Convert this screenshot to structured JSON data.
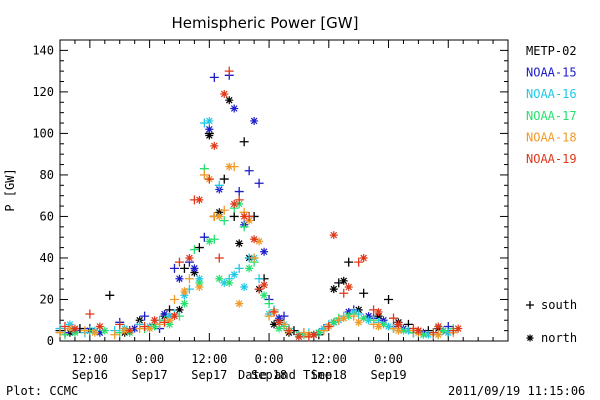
{
  "chart_data": {
    "type": "scatter",
    "title": "Hemispheric Power [GW]",
    "ylabel": "P [GW]",
    "xlabel": "Date and Time",
    "ylim": [
      0,
      145
    ],
    "y_ticks": [
      0,
      20,
      40,
      60,
      80,
      100,
      120,
      140
    ],
    "xlim_hours": [
      0,
      90
    ],
    "x_ticks": [
      {
        "hour": 6,
        "time": "12:00",
        "date": "Sep16"
      },
      {
        "hour": 18,
        "time": "0:00",
        "date": "Sep17"
      },
      {
        "hour": 30,
        "time": "12:00",
        "date": "Sep17"
      },
      {
        "hour": 42,
        "time": "0:00",
        "date": "Sep18"
      },
      {
        "hour": 54,
        "time": "12:00",
        "date": "Sep18"
      },
      {
        "hour": 66,
        "time": "0:00",
        "date": "Sep19"
      }
    ],
    "grid": false,
    "legend_position": "right",
    "marker_legend": [
      {
        "symbol": "+",
        "label": "south",
        "shape": "plus"
      },
      {
        "symbol": "*",
        "label": "north",
        "shape": "star"
      }
    ],
    "series": [
      {
        "name": "METP-02",
        "color": "#000000",
        "south": [
          [
            0,
            5
          ],
          [
            4,
            6
          ],
          [
            10,
            22
          ],
          [
            14,
            5
          ],
          [
            19,
            8
          ],
          [
            22,
            15
          ],
          [
            25,
            35
          ],
          [
            28,
            45
          ],
          [
            30,
            100
          ],
          [
            31,
            60
          ],
          [
            33,
            78
          ],
          [
            35,
            60
          ],
          [
            37,
            96
          ],
          [
            39,
            60
          ],
          [
            41,
            30
          ],
          [
            44,
            10
          ],
          [
            47,
            5
          ],
          [
            52,
            3
          ],
          [
            56,
            28
          ],
          [
            58,
            38
          ],
          [
            61,
            23
          ],
          [
            66,
            20
          ],
          [
            70,
            8
          ],
          [
            74,
            5
          ],
          [
            78,
            4
          ]
        ],
        "north": [
          [
            2,
            4
          ],
          [
            6,
            5
          ],
          [
            13,
            4
          ],
          [
            16,
            10
          ],
          [
            21,
            12
          ],
          [
            24,
            15
          ],
          [
            27,
            33
          ],
          [
            30,
            99
          ],
          [
            32,
            62
          ],
          [
            34,
            116
          ],
          [
            36,
            47
          ],
          [
            38,
            40
          ],
          [
            40,
            25
          ],
          [
            43,
            8
          ],
          [
            46,
            4
          ],
          [
            51,
            3
          ],
          [
            55,
            25
          ],
          [
            57,
            29
          ],
          [
            60,
            15
          ],
          [
            64,
            12
          ],
          [
            68,
            9
          ],
          [
            72,
            5
          ],
          [
            76,
            6
          ]
        ]
      },
      {
        "name": "NOAA-15",
        "color": "#1c1cc8",
        "south": [
          [
            1,
            4
          ],
          [
            6,
            6
          ],
          [
            12,
            9
          ],
          [
            17,
            12
          ],
          [
            20,
            6
          ],
          [
            23,
            35
          ],
          [
            26,
            38
          ],
          [
            29,
            50
          ],
          [
            31,
            127
          ],
          [
            34,
            128
          ],
          [
            36,
            72
          ],
          [
            38,
            82
          ],
          [
            40,
            76
          ],
          [
            42,
            20
          ],
          [
            45,
            12
          ],
          [
            49,
            4
          ],
          [
            53,
            6
          ],
          [
            56,
            10
          ],
          [
            59,
            15
          ],
          [
            63,
            11
          ],
          [
            67,
            7
          ],
          [
            71,
            4
          ],
          [
            75,
            3
          ],
          [
            78,
            7
          ]
        ],
        "north": [
          [
            3,
            5
          ],
          [
            8,
            4
          ],
          [
            15,
            6
          ],
          [
            21,
            13
          ],
          [
            24,
            30
          ],
          [
            27,
            35
          ],
          [
            30,
            102
          ],
          [
            32,
            73
          ],
          [
            35,
            112
          ],
          [
            37,
            56
          ],
          [
            39,
            106
          ],
          [
            41,
            43
          ],
          [
            44,
            11
          ],
          [
            48,
            3
          ],
          [
            52,
            4
          ],
          [
            55,
            9
          ],
          [
            58,
            14
          ],
          [
            62,
            12
          ],
          [
            65,
            10
          ],
          [
            69,
            6
          ],
          [
            73,
            4
          ],
          [
            77,
            5
          ]
        ]
      },
      {
        "name": "NOAA-16",
        "color": "#20c8e8",
        "south": [
          [
            0,
            6
          ],
          [
            5,
            4
          ],
          [
            11,
            5
          ],
          [
            16,
            8
          ],
          [
            20,
            10
          ],
          [
            23,
            13
          ],
          [
            26,
            25
          ],
          [
            29,
            105
          ],
          [
            32,
            75
          ],
          [
            34,
            30
          ],
          [
            36,
            35
          ],
          [
            38,
            40
          ],
          [
            40,
            30
          ],
          [
            43,
            15
          ],
          [
            46,
            6
          ],
          [
            50,
            4
          ],
          [
            54,
            8
          ],
          [
            57,
            12
          ],
          [
            60,
            13
          ],
          [
            64,
            9
          ],
          [
            68,
            6
          ],
          [
            72,
            4
          ],
          [
            76,
            3
          ],
          [
            79,
            5
          ]
        ],
        "north": [
          [
            2,
            8
          ],
          [
            7,
            5
          ],
          [
            13,
            6
          ],
          [
            18,
            7
          ],
          [
            22,
            12
          ],
          [
            25,
            22
          ],
          [
            28,
            30
          ],
          [
            30,
            106
          ],
          [
            33,
            28
          ],
          [
            35,
            32
          ],
          [
            37,
            26
          ],
          [
            39,
            40
          ],
          [
            42,
            13
          ],
          [
            45,
            8
          ],
          [
            49,
            3
          ],
          [
            53,
            6
          ],
          [
            56,
            10
          ],
          [
            59,
            14
          ],
          [
            62,
            10
          ],
          [
            66,
            7
          ],
          [
            70,
            5
          ],
          [
            74,
            3
          ],
          [
            78,
            4
          ]
        ]
      },
      {
        "name": "NOAA-17",
        "color": "#28e070",
        "south": [
          [
            1,
            3
          ],
          [
            6,
            5
          ],
          [
            12,
            4
          ],
          [
            17,
            6
          ],
          [
            21,
            10
          ],
          [
            24,
            12
          ],
          [
            27,
            44
          ],
          [
            29,
            83
          ],
          [
            31,
            49
          ],
          [
            33,
            58
          ],
          [
            35,
            64
          ],
          [
            37,
            55
          ],
          [
            39,
            38
          ],
          [
            42,
            18
          ],
          [
            45,
            7
          ],
          [
            49,
            3
          ],
          [
            53,
            5
          ],
          [
            56,
            11
          ],
          [
            59,
            13
          ],
          [
            63,
            10
          ],
          [
            67,
            6
          ],
          [
            71,
            4
          ],
          [
            75,
            4
          ],
          [
            79,
            6
          ]
        ],
        "north": [
          [
            3,
            4
          ],
          [
            9,
            5
          ],
          [
            14,
            4
          ],
          [
            19,
            7
          ],
          [
            22,
            8
          ],
          [
            25,
            18
          ],
          [
            28,
            28
          ],
          [
            30,
            48
          ],
          [
            32,
            30
          ],
          [
            34,
            28
          ],
          [
            36,
            66
          ],
          [
            38,
            35
          ],
          [
            41,
            22
          ],
          [
            44,
            6
          ],
          [
            48,
            3
          ],
          [
            52,
            4
          ],
          [
            55,
            9
          ],
          [
            58,
            12
          ],
          [
            61,
            11
          ],
          [
            65,
            8
          ],
          [
            69,
            5
          ],
          [
            73,
            3
          ],
          [
            77,
            5
          ]
        ]
      },
      {
        "name": "NOAA-18",
        "color": "#f09a28",
        "south": [
          [
            0,
            4
          ],
          [
            5,
            5
          ],
          [
            11,
            3
          ],
          [
            16,
            6
          ],
          [
            20,
            8
          ],
          [
            23,
            20
          ],
          [
            26,
            30
          ],
          [
            29,
            80
          ],
          [
            31,
            60
          ],
          [
            33,
            63
          ],
          [
            35,
            84
          ],
          [
            37,
            62
          ],
          [
            39,
            40
          ],
          [
            42,
            12
          ],
          [
            45,
            8
          ],
          [
            49,
            4
          ],
          [
            53,
            5
          ],
          [
            56,
            10
          ],
          [
            59,
            12
          ],
          [
            63,
            8
          ],
          [
            67,
            6
          ],
          [
            71,
            5
          ],
          [
            75,
            3
          ],
          [
            79,
            4
          ]
        ],
        "north": [
          [
            2,
            6
          ],
          [
            7,
            4
          ],
          [
            13,
            5
          ],
          [
            18,
            6
          ],
          [
            22,
            10
          ],
          [
            25,
            24
          ],
          [
            28,
            26
          ],
          [
            30,
            78
          ],
          [
            32,
            60
          ],
          [
            34,
            84
          ],
          [
            36,
            18
          ],
          [
            38,
            58
          ],
          [
            40,
            48
          ],
          [
            43,
            14
          ],
          [
            46,
            5
          ],
          [
            50,
            3
          ],
          [
            54,
            7
          ],
          [
            57,
            11
          ],
          [
            60,
            9
          ],
          [
            64,
            7
          ],
          [
            68,
            5
          ],
          [
            72,
            4
          ],
          [
            76,
            3
          ]
        ]
      },
      {
        "name": "NOAA-19",
        "color": "#e03818",
        "south": [
          [
            1,
            7
          ],
          [
            6,
            13
          ],
          [
            12,
            8
          ],
          [
            17,
            7
          ],
          [
            21,
            9
          ],
          [
            24,
            38
          ],
          [
            27,
            68
          ],
          [
            30,
            78
          ],
          [
            32,
            40
          ],
          [
            34,
            130
          ],
          [
            36,
            68
          ],
          [
            38,
            60
          ],
          [
            40,
            25
          ],
          [
            43,
            14
          ],
          [
            46,
            5
          ],
          [
            50,
            2
          ],
          [
            54,
            7
          ],
          [
            57,
            23
          ],
          [
            60,
            38
          ],
          [
            63,
            15
          ],
          [
            67,
            11
          ],
          [
            71,
            6
          ],
          [
            75,
            4
          ],
          [
            79,
            5
          ]
        ],
        "north": [
          [
            3,
            6
          ],
          [
            8,
            7
          ],
          [
            14,
            5
          ],
          [
            19,
            10
          ],
          [
            23,
            12
          ],
          [
            26,
            40
          ],
          [
            28,
            68
          ],
          [
            31,
            94
          ],
          [
            33,
            119
          ],
          [
            35,
            66
          ],
          [
            37,
            60
          ],
          [
            39,
            49
          ],
          [
            41,
            27
          ],
          [
            44,
            9
          ],
          [
            48,
            2
          ],
          [
            51,
            3
          ],
          [
            55,
            51
          ],
          [
            58,
            26
          ],
          [
            61,
            40
          ],
          [
            64,
            14
          ],
          [
            68,
            8
          ],
          [
            72,
            5
          ],
          [
            76,
            7
          ],
          [
            80,
            6
          ]
        ]
      }
    ]
  },
  "footer": {
    "plot_credit": "Plot: CCMC",
    "timestamp": "2011/09/19 11:15:06"
  }
}
